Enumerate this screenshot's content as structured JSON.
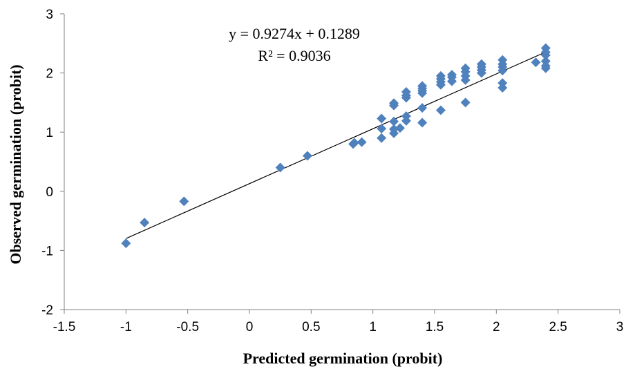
{
  "chart_data": {
    "type": "scatter",
    "title": "",
    "xlabel": "Predicted germination (probit)",
    "ylabel": "Observed germination (probit)",
    "xlim": [
      -1.5,
      3
    ],
    "ylim": [
      -2,
      3
    ],
    "x_ticks": [
      "-1.5",
      "-1",
      "-0.5",
      "0",
      "0.5",
      "1",
      "1.5",
      "2",
      "2.5",
      "3"
    ],
    "y_ticks": [
      "-2",
      "-1",
      "0",
      "1",
      "2",
      "3"
    ],
    "grid": false,
    "legend": "none",
    "marker_color": "#4F81BD",
    "trendline": {
      "slope": 0.9274,
      "intercept": 0.1289,
      "x_range": [
        -1,
        2.4
      ],
      "equation": "y = 0.9274x + 0.1289",
      "r_squared": "R² = 0.9036"
    },
    "points": [
      [
        -1.0,
        -0.88
      ],
      [
        -0.85,
        -0.53
      ],
      [
        -0.53,
        -0.17
      ],
      [
        0.25,
        0.4
      ],
      [
        0.47,
        0.6
      ],
      [
        0.84,
        0.8
      ],
      [
        0.85,
        0.82
      ],
      [
        0.91,
        0.83
      ],
      [
        1.07,
        0.9
      ],
      [
        1.07,
        1.06
      ],
      [
        1.07,
        1.23
      ],
      [
        1.17,
        0.98
      ],
      [
        1.17,
        1.05
      ],
      [
        1.17,
        1.18
      ],
      [
        1.17,
        1.45
      ],
      [
        1.17,
        1.49
      ],
      [
        1.22,
        1.07
      ],
      [
        1.27,
        1.19
      ],
      [
        1.27,
        1.27
      ],
      [
        1.27,
        1.58
      ],
      [
        1.27,
        1.62
      ],
      [
        1.27,
        1.68
      ],
      [
        1.4,
        1.16
      ],
      [
        1.4,
        1.41
      ],
      [
        1.4,
        1.66
      ],
      [
        1.4,
        1.7
      ],
      [
        1.4,
        1.74
      ],
      [
        1.4,
        1.78
      ],
      [
        1.55,
        1.37
      ],
      [
        1.55,
        1.8
      ],
      [
        1.55,
        1.85
      ],
      [
        1.55,
        1.9
      ],
      [
        1.55,
        1.95
      ],
      [
        1.64,
        1.86
      ],
      [
        1.64,
        1.93
      ],
      [
        1.64,
        1.97
      ],
      [
        1.75,
        1.5
      ],
      [
        1.75,
        1.88
      ],
      [
        1.75,
        1.95
      ],
      [
        1.75,
        2.02
      ],
      [
        1.75,
        2.08
      ],
      [
        1.88,
        2.0
      ],
      [
        1.88,
        2.05
      ],
      [
        1.88,
        2.1
      ],
      [
        1.88,
        2.15
      ],
      [
        2.05,
        1.75
      ],
      [
        2.05,
        1.83
      ],
      [
        2.05,
        2.04
      ],
      [
        2.05,
        2.1
      ],
      [
        2.05,
        2.15
      ],
      [
        2.05,
        2.22
      ],
      [
        2.32,
        2.18
      ],
      [
        2.4,
        2.08
      ],
      [
        2.4,
        2.12
      ],
      [
        2.4,
        2.2
      ],
      [
        2.4,
        2.3
      ],
      [
        2.4,
        2.35
      ],
      [
        2.4,
        2.42
      ]
    ]
  }
}
